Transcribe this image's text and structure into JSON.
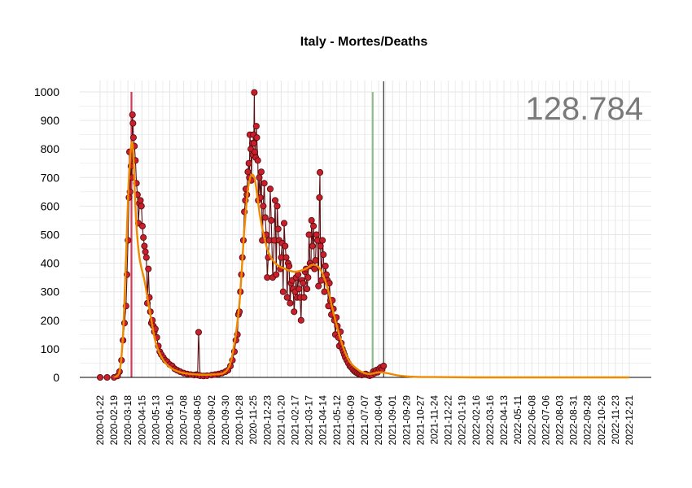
{
  "chart": {
    "title": "Italy - Mortes/Deaths",
    "total_label": "128.784"
  },
  "colors": {
    "background": "#ffffff",
    "grid": "#e6e6e6",
    "axis": "#000000",
    "points_fill": "#c8202a",
    "points_stroke": "#5a0d10",
    "smooth_line": "#f08a00",
    "marker_red": "#d23a5a",
    "marker_green": "#8fbc8f",
    "marker_black": "#000000",
    "total_text": "#7a7a7a"
  },
  "chart_data": {
    "type": "scatter",
    "title": "Italy - Mortes/Deaths",
    "xlabel": "",
    "ylabel": "",
    "ylim": [
      0,
      1000
    ],
    "yticks": [
      0,
      100,
      200,
      300,
      400,
      500,
      600,
      700,
      800,
      900,
      1000
    ],
    "xlim": [
      "2020-01-22",
      "2022-12-21"
    ],
    "xticks": [
      "2020-01-22",
      "2020-02-19",
      "2020-03-18",
      "2020-04-15",
      "2020-05-13",
      "2020-06-10",
      "2020-07-08",
      "2020-08-05",
      "2020-09-02",
      "2020-09-30",
      "2020-10-28",
      "2020-11-25",
      "2020-12-23",
      "2021-01-20",
      "2021-02-17",
      "2021-03-17",
      "2021-04-14",
      "2021-05-12",
      "2021-06-09",
      "2021-07-07",
      "2021-08-04",
      "2021-09-01",
      "2021-09-29",
      "2021-10-27",
      "2021-11-24",
      "2021-12-22",
      "2022-01-19",
      "2022-02-16",
      "2022-03-16",
      "2022-04-13",
      "2022-05-11",
      "2022-06-08",
      "2022-07-06",
      "2022-08-03",
      "2022-08-31",
      "2022-09-28",
      "2022-10-26",
      "2022-11-23",
      "2022-12-21"
    ],
    "grid": true,
    "vertical_markers": [
      {
        "date": "2020-03-25",
        "color": "#d23a5a"
      },
      {
        "date": "2021-07-23",
        "color": "#8fbc8f"
      },
      {
        "date": "2021-08-14",
        "color": "#000000"
      }
    ],
    "series": [
      {
        "kind": "daily",
        "points": [
          [
            "2020-01-22",
            0
          ],
          [
            "2020-02-05",
            0
          ],
          [
            "2020-02-19",
            0
          ],
          [
            "2020-02-26",
            5
          ],
          [
            "2020-03-01",
            20
          ],
          [
            "2020-03-05",
            60
          ],
          [
            "2020-03-08",
            130
          ],
          [
            "2020-03-11",
            190
          ],
          [
            "2020-03-14",
            250
          ],
          [
            "2020-03-16",
            360
          ],
          [
            "2020-03-18",
            480
          ],
          [
            "2020-03-20",
            630
          ],
          [
            "2020-03-21",
            790
          ],
          [
            "2020-03-22",
            650
          ],
          [
            "2020-03-24",
            740
          ],
          [
            "2020-03-26",
            700
          ],
          [
            "2020-03-27",
            920
          ],
          [
            "2020-03-28",
            890
          ],
          [
            "2020-03-29",
            840
          ],
          [
            "2020-03-31",
            810
          ],
          [
            "2020-04-02",
            760
          ],
          [
            "2020-04-04",
            680
          ],
          [
            "2020-04-06",
            640
          ],
          [
            "2020-04-08",
            540
          ],
          [
            "2020-04-10",
            610
          ],
          [
            "2020-04-12",
            620
          ],
          [
            "2020-04-14",
            600
          ],
          [
            "2020-04-16",
            530
          ],
          [
            "2020-04-18",
            490
          ],
          [
            "2020-04-20",
            460
          ],
          [
            "2020-04-22",
            440
          ],
          [
            "2020-04-24",
            420
          ],
          [
            "2020-04-26",
            260
          ],
          [
            "2020-04-28",
            380
          ],
          [
            "2020-04-30",
            280
          ],
          [
            "2020-05-02",
            230
          ],
          [
            "2020-05-04",
            190
          ],
          [
            "2020-05-06",
            200
          ],
          [
            "2020-05-08",
            180
          ],
          [
            "2020-05-10",
            160
          ],
          [
            "2020-05-12",
            170
          ],
          [
            "2020-05-15",
            140
          ],
          [
            "2020-05-18",
            110
          ],
          [
            "2020-05-21",
            90
          ],
          [
            "2020-05-24",
            80
          ],
          [
            "2020-05-28",
            70
          ],
          [
            "2020-06-01",
            60
          ],
          [
            "2020-06-05",
            55
          ],
          [
            "2020-06-10",
            45
          ],
          [
            "2020-06-15",
            40
          ],
          [
            "2020-06-20",
            30
          ],
          [
            "2020-06-25",
            25
          ],
          [
            "2020-07-01",
            20
          ],
          [
            "2020-07-08",
            15
          ],
          [
            "2020-07-15",
            12
          ],
          [
            "2020-07-22",
            10
          ],
          [
            "2020-07-29",
            8
          ],
          [
            "2020-08-03",
            10
          ],
          [
            "2020-08-05",
            8
          ],
          [
            "2020-08-07",
            158
          ],
          [
            "2020-08-10",
            6
          ],
          [
            "2020-08-17",
            5
          ],
          [
            "2020-08-24",
            6
          ],
          [
            "2020-09-02",
            8
          ],
          [
            "2020-09-09",
            10
          ],
          [
            "2020-09-16",
            12
          ],
          [
            "2020-09-23",
            15
          ],
          [
            "2020-09-30",
            20
          ],
          [
            "2020-10-05",
            25
          ],
          [
            "2020-10-10",
            40
          ],
          [
            "2020-10-14",
            60
          ],
          [
            "2020-10-18",
            90
          ],
          [
            "2020-10-21",
            130
          ],
          [
            "2020-10-24",
            150
          ],
          [
            "2020-10-26",
            220
          ],
          [
            "2020-10-28",
            230
          ],
          [
            "2020-10-30",
            300
          ],
          [
            "2020-11-01",
            360
          ],
          [
            "2020-11-03",
            420
          ],
          [
            "2020-11-05",
            480
          ],
          [
            "2020-11-07",
            580
          ],
          [
            "2020-11-09",
            620
          ],
          [
            "2020-11-10",
            660
          ],
          [
            "2020-11-12",
            640
          ],
          [
            "2020-11-14",
            720
          ],
          [
            "2020-11-16",
            750
          ],
          [
            "2020-11-17",
            700
          ],
          [
            "2020-11-18",
            850
          ],
          [
            "2020-11-20",
            800
          ],
          [
            "2020-11-21",
            690
          ],
          [
            "2020-11-23",
            820
          ],
          [
            "2020-11-24",
            780
          ],
          [
            "2020-11-25",
            850
          ],
          [
            "2020-11-26",
            820
          ],
          [
            "2020-11-27",
            998
          ],
          [
            "2020-11-28",
            790
          ],
          [
            "2020-11-30",
            770
          ],
          [
            "2020-12-01",
            880
          ],
          [
            "2020-12-02",
            840
          ],
          [
            "2020-12-04",
            760
          ],
          [
            "2020-12-05",
            620
          ],
          [
            "2020-12-07",
            700
          ],
          [
            "2020-12-09",
            630
          ],
          [
            "2020-12-11",
            720
          ],
          [
            "2020-12-13",
            480
          ],
          [
            "2020-12-15",
            600
          ],
          [
            "2020-12-17",
            680
          ],
          [
            "2020-12-19",
            560
          ],
          [
            "2020-12-21",
            500
          ],
          [
            "2020-12-23",
            350
          ],
          [
            "2020-12-25",
            420
          ],
          [
            "2020-12-27",
            480
          ],
          [
            "2020-12-29",
            660
          ],
          [
            "2020-12-31",
            550
          ],
          [
            "2021-01-03",
            350
          ],
          [
            "2021-01-06",
            480
          ],
          [
            "2021-01-08",
            620
          ],
          [
            "2021-01-10",
            360
          ],
          [
            "2021-01-12",
            600
          ],
          [
            "2021-01-14",
            520
          ],
          [
            "2021-01-16",
            480
          ],
          [
            "2021-01-18",
            380
          ],
          [
            "2021-01-20",
            420
          ],
          [
            "2021-01-22",
            470
          ],
          [
            "2021-01-24",
            300
          ],
          [
            "2021-01-26",
            540
          ],
          [
            "2021-01-28",
            460
          ],
          [
            "2021-01-30",
            420
          ],
          [
            "2021-02-01",
            280
          ],
          [
            "2021-02-03",
            400
          ],
          [
            "2021-02-05",
            390
          ],
          [
            "2021-02-07",
            260
          ],
          [
            "2021-02-09",
            330
          ],
          [
            "2021-02-11",
            340
          ],
          [
            "2021-02-13",
            310
          ],
          [
            "2021-02-15",
            230
          ],
          [
            "2021-02-17",
            300
          ],
          [
            "2021-02-19",
            350
          ],
          [
            "2021-02-21",
            280
          ],
          [
            "2021-02-23",
            360
          ],
          [
            "2021-02-25",
            310
          ],
          [
            "2021-02-27",
            280
          ],
          [
            "2021-03-01",
            200
          ],
          [
            "2021-03-03",
            340
          ],
          [
            "2021-03-05",
            330
          ],
          [
            "2021-03-07",
            280
          ],
          [
            "2021-03-09",
            370
          ],
          [
            "2021-03-11",
            380
          ],
          [
            "2021-03-13",
            310
          ],
          [
            "2021-03-15",
            350
          ],
          [
            "2021-03-17",
            500
          ],
          [
            "2021-03-19",
            400
          ],
          [
            "2021-03-21",
            390
          ],
          [
            "2021-03-22",
            550
          ],
          [
            "2021-03-24",
            460
          ],
          [
            "2021-03-26",
            530
          ],
          [
            "2021-03-28",
            380
          ],
          [
            "2021-03-30",
            410
          ],
          [
            "2021-04-01",
            500
          ],
          [
            "2021-04-03",
            480
          ],
          [
            "2021-04-05",
            320
          ],
          [
            "2021-04-07",
            630
          ],
          [
            "2021-04-08",
            718
          ],
          [
            "2021-04-09",
            460
          ],
          [
            "2021-04-11",
            340
          ],
          [
            "2021-04-13",
            480
          ],
          [
            "2021-04-15",
            430
          ],
          [
            "2021-04-17",
            300
          ],
          [
            "2021-04-19",
            390
          ],
          [
            "2021-04-21",
            360
          ],
          [
            "2021-04-23",
            340
          ],
          [
            "2021-04-25",
            250
          ],
          [
            "2021-04-27",
            330
          ],
          [
            "2021-04-29",
            270
          ],
          [
            "2021-05-01",
            220
          ],
          [
            "2021-05-03",
            270
          ],
          [
            "2021-05-05",
            240
          ],
          [
            "2021-05-07",
            200
          ],
          [
            "2021-05-09",
            150
          ],
          [
            "2021-05-11",
            210
          ],
          [
            "2021-05-13",
            180
          ],
          [
            "2021-05-15",
            140
          ],
          [
            "2021-05-17",
            110
          ],
          [
            "2021-05-19",
            160
          ],
          [
            "2021-05-21",
            120
          ],
          [
            "2021-05-23",
            100
          ],
          [
            "2021-05-25",
            90
          ],
          [
            "2021-05-27",
            80
          ],
          [
            "2021-05-29",
            70
          ],
          [
            "2021-06-01",
            60
          ],
          [
            "2021-06-04",
            50
          ],
          [
            "2021-06-07",
            40
          ],
          [
            "2021-06-10",
            35
          ],
          [
            "2021-06-13",
            28
          ],
          [
            "2021-06-16",
            22
          ],
          [
            "2021-06-19",
            18
          ],
          [
            "2021-06-22",
            15
          ],
          [
            "2021-06-25",
            12
          ],
          [
            "2021-06-28",
            10
          ],
          [
            "2021-07-01",
            8
          ],
          [
            "2021-07-05",
            10
          ],
          [
            "2021-07-09",
            12
          ],
          [
            "2021-07-13",
            8
          ],
          [
            "2021-07-17",
            6
          ],
          [
            "2021-07-21",
            8
          ],
          [
            "2021-07-24",
            20
          ],
          [
            "2021-07-27",
            15
          ],
          [
            "2021-07-30",
            25
          ],
          [
            "2021-08-02",
            18
          ],
          [
            "2021-08-05",
            30
          ],
          [
            "2021-08-08",
            35
          ],
          [
            "2021-08-11",
            28
          ],
          [
            "2021-08-14",
            40
          ]
        ]
      },
      {
        "kind": "smoothed",
        "points": [
          [
            "2020-02-19",
            0
          ],
          [
            "2020-03-01",
            20
          ],
          [
            "2020-03-08",
            150
          ],
          [
            "2020-03-14",
            420
          ],
          [
            "2020-03-20",
            700
          ],
          [
            "2020-03-27",
            820
          ],
          [
            "2020-04-03",
            560
          ],
          [
            "2020-04-10",
            420
          ],
          [
            "2020-04-20",
            340
          ],
          [
            "2020-05-01",
            230
          ],
          [
            "2020-05-13",
            120
          ],
          [
            "2020-05-28",
            60
          ],
          [
            "2020-06-15",
            30
          ],
          [
            "2020-07-08",
            15
          ],
          [
            "2020-08-05",
            10
          ],
          [
            "2020-09-02",
            10
          ],
          [
            "2020-09-30",
            20
          ],
          [
            "2020-10-14",
            80
          ],
          [
            "2020-10-28",
            260
          ],
          [
            "2020-11-07",
            520
          ],
          [
            "2020-11-16",
            680
          ],
          [
            "2020-11-27",
            700
          ],
          [
            "2020-12-09",
            560
          ],
          [
            "2020-12-23",
            450
          ],
          [
            "2021-01-08",
            400
          ],
          [
            "2021-01-28",
            380
          ],
          [
            "2021-02-17",
            370
          ],
          [
            "2021-03-10",
            380
          ],
          [
            "2021-03-25",
            395
          ],
          [
            "2021-04-08",
            380
          ],
          [
            "2021-04-22",
            320
          ],
          [
            "2021-05-06",
            220
          ],
          [
            "2021-05-20",
            130
          ],
          [
            "2021-06-05",
            60
          ],
          [
            "2021-06-25",
            25
          ],
          [
            "2021-07-15",
            12
          ],
          [
            "2021-08-04",
            18
          ],
          [
            "2021-08-20",
            15
          ],
          [
            "2021-09-15",
            6
          ],
          [
            "2021-10-15",
            2
          ],
          [
            "2021-11-24",
            1
          ],
          [
            "2022-02-16",
            0
          ],
          [
            "2022-06-08",
            0
          ],
          [
            "2022-12-21",
            0
          ]
        ]
      }
    ]
  }
}
